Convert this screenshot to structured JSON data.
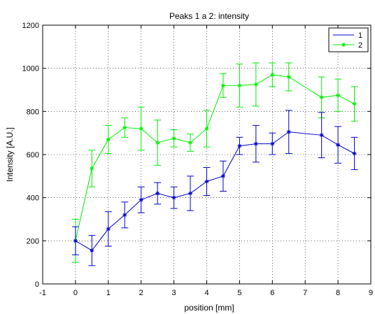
{
  "chart_data": {
    "type": "line",
    "title": "Peaks 1 a 2: intensity",
    "xlabel": "position [mm]",
    "ylabel": "Intensity [A.U.]",
    "xlim": [
      -1,
      9
    ],
    "ylim": [
      0,
      1200
    ],
    "xticks": [
      -1,
      0,
      1,
      2,
      3,
      4,
      5,
      6,
      7,
      8,
      9
    ],
    "yticks": [
      0,
      200,
      400,
      600,
      800,
      1000,
      1200
    ],
    "grid": true,
    "legend_position": "top-right",
    "series": [
      {
        "name": "1",
        "color": "#0000cc",
        "marker": "star",
        "x": [
          0,
          0.5,
          1,
          1.5,
          2,
          2.5,
          3,
          3.5,
          4,
          4.5,
          5,
          5.5,
          6,
          6.5,
          7.5,
          8,
          8.5
        ],
        "y": [
          200,
          155,
          255,
          320,
          390,
          420,
          400,
          420,
          475,
          500,
          640,
          650,
          650,
          705,
          690,
          645,
          605
        ],
        "yerr": [
          65,
          70,
          80,
          60,
          60,
          50,
          50,
          80,
          65,
          70,
          40,
          85,
          50,
          100,
          105,
          85,
          75
        ]
      },
      {
        "name": "2",
        "color": "#00ee00",
        "marker": "star",
        "x": [
          0,
          0.5,
          1,
          1.5,
          2,
          2.5,
          3,
          3.5,
          4,
          4.5,
          5,
          5.5,
          6,
          6.5,
          7.5,
          8,
          8.5
        ],
        "y": [
          200,
          535,
          670,
          725,
          720,
          655,
          675,
          655,
          720,
          920,
          920,
          925,
          970,
          960,
          865,
          875,
          835
        ],
        "yerr": [
          100,
          85,
          65,
          45,
          100,
          105,
          40,
          40,
          85,
          55,
          100,
          100,
          55,
          65,
          95,
          75,
          80
        ]
      }
    ]
  }
}
